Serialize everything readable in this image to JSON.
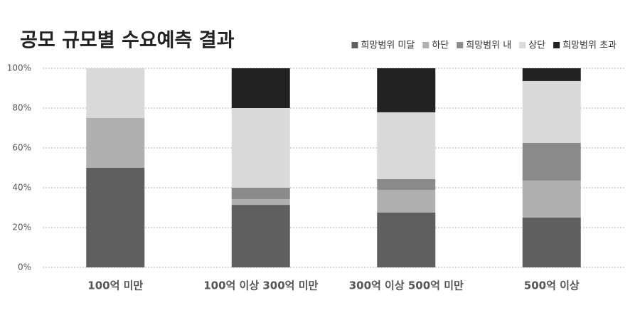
{
  "chart_data": {
    "type": "stacked_bar",
    "title": "공모 규모별 수요예측 결과",
    "categories": [
      "100억 미만",
      "100억 이상 300억 미만",
      "300억 이상 500억 미만",
      "500억 이상"
    ],
    "series": [
      {
        "name": "희망범위 미달",
        "color": "#5f5f5f",
        "values": [
          50,
          31.4,
          27.5,
          25
        ]
      },
      {
        "name": "하단",
        "color": "#b0b0b0",
        "values": [
          25,
          2.9,
          11.4,
          18.6
        ]
      },
      {
        "name": "희망범위 내",
        "color": "#8a8a8a",
        "values": [
          0,
          5.7,
          5.4,
          18.9
        ]
      },
      {
        "name": "상단",
        "color": "#d9d9d9",
        "values": [
          25,
          40,
          33.6,
          31.1
        ]
      },
      {
        "name": "희망범위 초과",
        "color": "#222222",
        "values": [
          0,
          20,
          22.1,
          6.4
        ]
      }
    ],
    "ylim": [
      0,
      100
    ],
    "yticks": [
      {
        "value": 0,
        "label": "0%"
      },
      {
        "value": 20,
        "label": "20%"
      },
      {
        "value": 40,
        "label": "40%"
      },
      {
        "value": 60,
        "label": "60%"
      },
      {
        "value": 80,
        "label": "80%"
      },
      {
        "value": 100,
        "label": "100%"
      }
    ],
    "grid": true
  }
}
